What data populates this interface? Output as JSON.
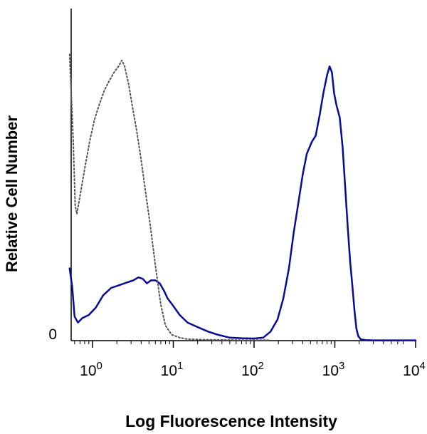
{
  "chart_data": {
    "type": "line",
    "xlabel": "Log Fluorescence Intensity",
    "ylabel": "Relative Cell Number",
    "x_scale": "log",
    "xlim": [
      0.5,
      10000
    ],
    "ylim": [
      0,
      100
    ],
    "grid": false,
    "x_ticks": [
      {
        "base": "10",
        "exp": "0",
        "value": 1
      },
      {
        "base": "10",
        "exp": "1",
        "value": 10
      },
      {
        "base": "10",
        "exp": "2",
        "value": 100
      },
      {
        "base": "10",
        "exp": "3",
        "value": 1000
      },
      {
        "base": "10",
        "exp": "4",
        "value": 10000
      }
    ],
    "y_ticks": [
      {
        "label": "0",
        "value": 0
      }
    ],
    "series": [
      {
        "color": "#0a0a99",
        "style": "solid",
        "points": [
          [
            0.52,
            24
          ],
          [
            0.56,
            18
          ],
          [
            0.6,
            8
          ],
          [
            0.66,
            6
          ],
          [
            0.75,
            7.5
          ],
          [
            0.9,
            8.5
          ],
          [
            1.1,
            11
          ],
          [
            1.35,
            15
          ],
          [
            1.7,
            17.5
          ],
          [
            2.2,
            18.5
          ],
          [
            2.8,
            19.5
          ],
          [
            3.2,
            20
          ],
          [
            3.7,
            21
          ],
          [
            4.2,
            20.5
          ],
          [
            4.7,
            19
          ],
          [
            5.3,
            20
          ],
          [
            6.0,
            20
          ],
          [
            6.8,
            19
          ],
          [
            7.7,
            16.5
          ],
          [
            8.5,
            14
          ],
          [
            10,
            11.5
          ],
          [
            12,
            8.5
          ],
          [
            15,
            6
          ],
          [
            20,
            4.5
          ],
          [
            27,
            3
          ],
          [
            35,
            2
          ],
          [
            50,
            1
          ],
          [
            70,
            0.8
          ],
          [
            100,
            0.7
          ],
          [
            130,
            1
          ],
          [
            160,
            3
          ],
          [
            195,
            7
          ],
          [
            230,
            14
          ],
          [
            270,
            24
          ],
          [
            310,
            36
          ],
          [
            350,
            45
          ],
          [
            400,
            55
          ],
          [
            450,
            62
          ],
          [
            520,
            66
          ],
          [
            580,
            68
          ],
          [
            650,
            75
          ],
          [
            720,
            82
          ],
          [
            800,
            88
          ],
          [
            860,
            91
          ],
          [
            920,
            89
          ],
          [
            980,
            82
          ],
          [
            1050,
            78
          ],
          [
            1150,
            74
          ],
          [
            1250,
            64
          ],
          [
            1350,
            50
          ],
          [
            1450,
            37
          ],
          [
            1550,
            26
          ],
          [
            1650,
            18
          ],
          [
            1750,
            10
          ],
          [
            1850,
            4
          ],
          [
            1950,
            1.5
          ],
          [
            2100,
            0.4
          ],
          [
            2400,
            0.2
          ],
          [
            3000,
            0.1
          ],
          [
            5000,
            0.1
          ],
          [
            10000,
            0.1
          ]
        ]
      },
      {
        "color": "#555555",
        "style": "dotted",
        "points": [
          [
            0.52,
            95
          ],
          [
            0.55,
            80
          ],
          [
            0.58,
            65
          ],
          [
            0.61,
            45
          ],
          [
            0.64,
            42
          ],
          [
            0.7,
            48
          ],
          [
            0.8,
            57
          ],
          [
            0.92,
            66
          ],
          [
            1.05,
            73
          ],
          [
            1.2,
            78
          ],
          [
            1.4,
            83
          ],
          [
            1.6,
            86
          ],
          [
            1.85,
            89
          ],
          [
            2.1,
            91
          ],
          [
            2.3,
            93
          ],
          [
            2.5,
            91
          ],
          [
            2.8,
            85
          ],
          [
            3.1,
            78
          ],
          [
            3.5,
            70
          ],
          [
            4.0,
            60
          ],
          [
            4.5,
            50
          ],
          [
            5.2,
            38
          ],
          [
            6.0,
            25
          ],
          [
            7.0,
            12
          ],
          [
            8.0,
            5
          ],
          [
            9.5,
            2
          ],
          [
            12,
            1
          ],
          [
            15,
            0.5
          ],
          [
            25,
            0.3
          ],
          [
            60,
            0.2
          ],
          [
            150,
            0.2
          ]
        ]
      }
    ]
  }
}
